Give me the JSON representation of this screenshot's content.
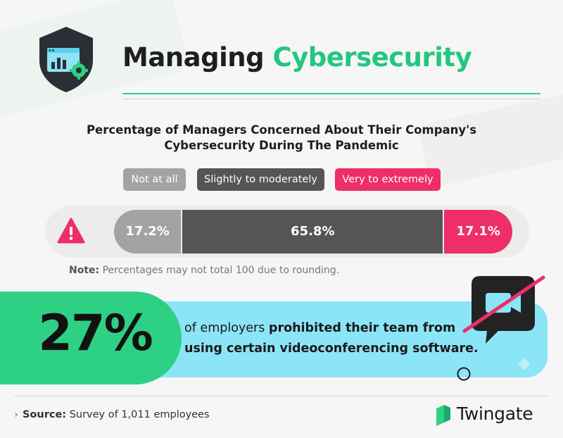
{
  "header": {
    "title_part1": "Managing",
    "title_part2": "Cybersecurity",
    "icon": "shield-dashboard-gear-icon"
  },
  "chart_data": {
    "type": "bar",
    "orientation": "horizontal-stacked",
    "title": "Percentage of Managers Concerned About Their Company's Cybersecurity During The Pandemic",
    "categories": [
      "Not at all",
      "Slightly to moderately",
      "Very to extremely"
    ],
    "values": [
      17.2,
      65.8,
      17.1
    ],
    "value_labels": [
      "17.2%",
      "65.8%",
      "17.1%"
    ],
    "colors": [
      "#a3a3a3",
      "#555555",
      "#ee2e69"
    ],
    "unit": "%",
    "legend_position": "top"
  },
  "note": {
    "label": "Note:",
    "text": "Percentages may not total 100 due to rounding."
  },
  "stat": {
    "value": "27%",
    "text_plain": "of employers ",
    "text_bold": "prohibited their team from using certain videoconferencing software."
  },
  "footer": {
    "source_label": "Source:",
    "source_text": "Survey of 1,011 employees",
    "brand": "Twingate"
  },
  "colors": {
    "accent_green": "#22c77e",
    "stat_blue": "#8ce4f7",
    "alert_pink": "#ee2e69"
  }
}
